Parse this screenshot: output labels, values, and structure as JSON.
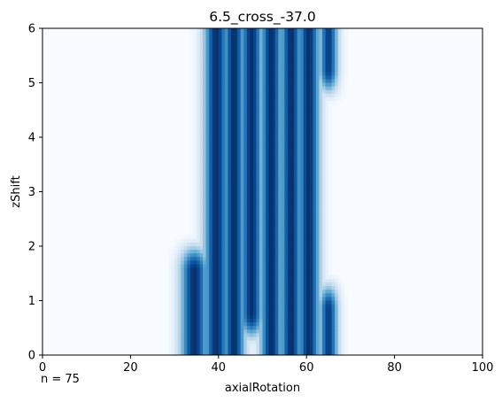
{
  "chart_data": {
    "type": "heatmap",
    "title": "6.5_cross_-37.0",
    "xlabel": "axialRotation",
    "ylabel": "zShift",
    "xlim": [
      0,
      100
    ],
    "ylim": [
      0,
      6
    ],
    "xticks": [
      "0",
      "20",
      "40",
      "60",
      "80",
      "100"
    ],
    "yticks": [
      "0",
      "1",
      "2",
      "3",
      "4",
      "5",
      "6"
    ],
    "colormap": "Blues",
    "background_color": "#f7fbff",
    "peak_color": "#08306b",
    "annotation": "n = 75",
    "bands": [
      {
        "x_center": 34.5,
        "x_width": 2.2,
        "y_from": 0.0,
        "y_to": 1.9,
        "intensity": 1.0
      },
      {
        "x_center": 39.5,
        "x_width": 2.0,
        "y_from": 0.0,
        "y_to": 6.0,
        "intensity": 1.0
      },
      {
        "x_center": 43.5,
        "x_width": 1.8,
        "y_from": 0.0,
        "y_to": 6.0,
        "intensity": 1.0
      },
      {
        "x_center": 47.5,
        "x_width": 1.8,
        "y_from": 0.4,
        "y_to": 6.0,
        "intensity": 1.0
      },
      {
        "x_center": 52.0,
        "x_width": 1.8,
        "y_from": 0.0,
        "y_to": 6.0,
        "intensity": 1.0
      },
      {
        "x_center": 56.5,
        "x_width": 1.8,
        "y_from": 0.0,
        "y_to": 6.0,
        "intensity": 1.0
      },
      {
        "x_center": 60.5,
        "x_width": 1.8,
        "y_from": 0.0,
        "y_to": 6.0,
        "intensity": 1.0
      },
      {
        "x_center": 65.0,
        "x_width": 1.5,
        "y_from": 0.0,
        "y_to": 1.2,
        "intensity": 0.95
      },
      {
        "x_center": 65.0,
        "x_width": 1.5,
        "y_from": 4.9,
        "y_to": 6.0,
        "intensity": 0.95
      }
    ]
  }
}
